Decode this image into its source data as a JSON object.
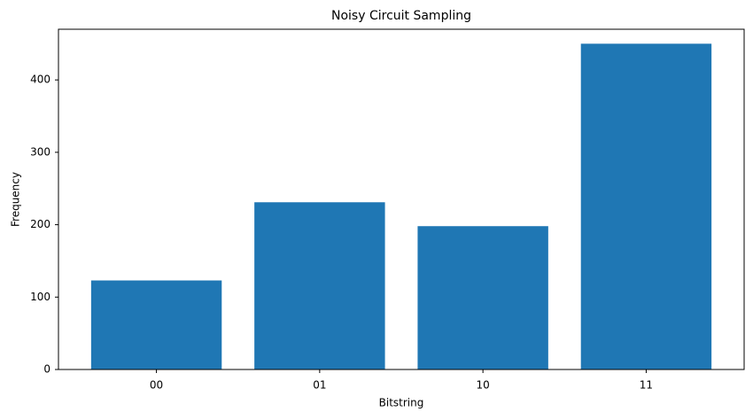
{
  "chart_data": {
    "type": "bar",
    "title": "Noisy Circuit Sampling",
    "x_label": "Bitstring",
    "y_label": "Frequency",
    "categories": [
      "00",
      "01",
      "10",
      "11"
    ],
    "values": [
      123,
      231,
      198,
      450
    ],
    "color": "#1f77b4",
    "ylim": [
      0,
      470
    ],
    "yticks": [
      0,
      100,
      200,
      300,
      400
    ],
    "grid": false
  }
}
